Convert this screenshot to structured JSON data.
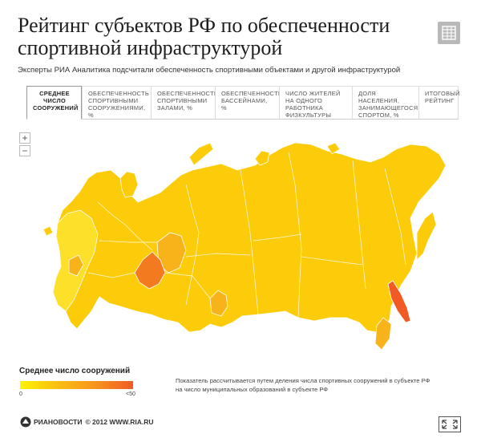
{
  "header": {
    "title": "Рейтинг субъектов РФ по обеспеченности спортивной инфраструктурой",
    "subtitle": "Эксперты РИА Аналитика подсчитали обеспеченность спортивными объектами и другой инфраструктурой"
  },
  "tabs": [
    {
      "label": "Среднее число сооружений",
      "active": true
    },
    {
      "label": "Обеспеченность спортивными сооружениями, %",
      "active": false
    },
    {
      "label": "Обеспеченность спортивными залами, %",
      "active": false
    },
    {
      "label": "Обеспеченность бассейнами, %",
      "active": false
    },
    {
      "label": "Число жителей на одного работника физкультуры",
      "active": false
    },
    {
      "label": "Доля населения, занимающегося спортом, %",
      "active": false
    },
    {
      "label": "Итоговый рейтинг",
      "active": false
    }
  ],
  "zoom": {
    "in_label": "+",
    "out_label": "−"
  },
  "legend": {
    "title": "Среднее число сооружений",
    "min_label": "0",
    "max_label": "<50",
    "colors": [
      "#fff200",
      "#fbbf10",
      "#f7941e",
      "#f15a24"
    ]
  },
  "note": "Показатель рассчитывается путем деления числа спортивных сооружений в субъекте РФ на число муниципальных образований в субъекте РФ",
  "footer": {
    "brand": "РИАНОВОСТИ",
    "copyright": "© 2012 WWW.RIA.RU"
  },
  "map": {
    "base_color": "#fccc0a",
    "light_color": "#fde02a",
    "mid_color": "#f9b31a",
    "dark_color": "#f47a20",
    "darkest_color": "#f15a24",
    "border_color": "#ffffff"
  }
}
